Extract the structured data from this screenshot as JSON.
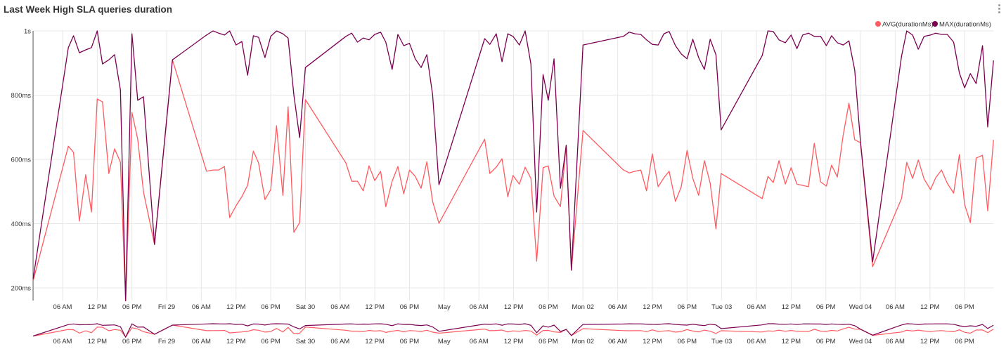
{
  "header": {
    "title": "Last Week High SLA queries duration",
    "menu_icon": "kebab-menu-icon"
  },
  "colors": {
    "avg": "#ff5a5f",
    "max": "#7b0051",
    "grid": "#e8e8e8",
    "axis": "#555555"
  },
  "chart_data": {
    "type": "line",
    "title": "Last Week High SLA queries duration",
    "xlabel": "",
    "ylabel": "",
    "x_unit": "hours since Thu 28 00:00",
    "xlim": [
      0.9,
      167.0
    ],
    "ylim": [
      160,
      1000
    ],
    "grid": true,
    "legend_position": "top-right",
    "y_ticks": [
      {
        "v": 200,
        "label": "200ms"
      },
      {
        "v": 400,
        "label": "400ms"
      },
      {
        "v": 600,
        "label": "600ms"
      },
      {
        "v": 800,
        "label": "800ms"
      },
      {
        "v": 1000,
        "label": "1s"
      }
    ],
    "x_ticks": [
      {
        "h": 6,
        "label": "06 AM"
      },
      {
        "h": 12,
        "label": "12 PM"
      },
      {
        "h": 18,
        "label": "06 PM"
      },
      {
        "h": 24,
        "label": "Fri 29"
      },
      {
        "h": 30,
        "label": "06 AM"
      },
      {
        "h": 36,
        "label": "12 PM"
      },
      {
        "h": 42,
        "label": "06 PM"
      },
      {
        "h": 48,
        "label": "Sat 30"
      },
      {
        "h": 54,
        "label": "06 AM"
      },
      {
        "h": 60,
        "label": "12 PM"
      },
      {
        "h": 66,
        "label": "06 PM"
      },
      {
        "h": 72,
        "label": "May"
      },
      {
        "h": 78,
        "label": "06 AM"
      },
      {
        "h": 84,
        "label": "12 PM"
      },
      {
        "h": 90,
        "label": "06 PM"
      },
      {
        "h": 96,
        "label": "Mon 02"
      },
      {
        "h": 102,
        "label": "06 AM"
      },
      {
        "h": 108,
        "label": "12 PM"
      },
      {
        "h": 114,
        "label": "06 PM"
      },
      {
        "h": 120,
        "label": "Tue 03"
      },
      {
        "h": 126,
        "label": "06 AM"
      },
      {
        "h": 132,
        "label": "12 PM"
      },
      {
        "h": 138,
        "label": "06 PM"
      },
      {
        "h": 144,
        "label": "Wed 04"
      },
      {
        "h": 150,
        "label": "06 AM"
      },
      {
        "h": 156,
        "label": "12 PM"
      },
      {
        "h": 162,
        "label": "06 PM"
      }
    ],
    "x": [
      0.9,
      7.0,
      7.9,
      8.9,
      10.0,
      11.0,
      12.0,
      12.9,
      14.0,
      15.0,
      16.0,
      16.9,
      18.0,
      19.0,
      20.0,
      21.9,
      25.0,
      30.9,
      32.0,
      33.0,
      34.0,
      34.9,
      36.0,
      37.0,
      38.0,
      39.0,
      39.9,
      41.0,
      42.0,
      43.0,
      44.1,
      45.0,
      46.0,
      47.0,
      48.0,
      55.0,
      56.0,
      57.0,
      58.0,
      59.0,
      60.0,
      61.0,
      61.9,
      63.0,
      64.0,
      65.0,
      66.0,
      67.0,
      68.0,
      69.0,
      70.0,
      71.1,
      79.0,
      79.9,
      81.0,
      82.0,
      83.0,
      83.9,
      85.0,
      86.0,
      87.0,
      88.0,
      89.1,
      90.0,
      91.0,
      92.1,
      93.1,
      94.0,
      96.0,
      103.0,
      104.0,
      105.0,
      106.0,
      107.0,
      108.0,
      109.0,
      110.0,
      110.9,
      112.0,
      113.0,
      114.0,
      115.0,
      116.0,
      117.0,
      118.0,
      119.0,
      119.9,
      127.0,
      128.0,
      128.9,
      129.9,
      131.0,
      132.0,
      133.0,
      134.0,
      135.0,
      136.0,
      137.1,
      138.1,
      139.0,
      140.0,
      141.0,
      142.0,
      143.0,
      144.0,
      146.1,
      151.1,
      152.0,
      153.0,
      154.0,
      155.0,
      156.1,
      157.0,
      158.0,
      159.0,
      160.1,
      161.1,
      162.0,
      163.0,
      164.0,
      165.1,
      166.0,
      167.0
    ],
    "series": [
      {
        "name": "AVG(durationMs)",
        "values": [
          222,
          641,
          622,
          408,
          552,
          436,
          788,
          779,
          556,
          633,
          591,
          160,
          746,
          663,
          499,
          335,
          910,
          563,
          567,
          567,
          578,
          419,
          456,
          484,
          519,
          626,
          589,
          475,
          506,
          705,
          488,
          764,
          373,
          403,
          786,
          589,
          532,
          532,
          502,
          580,
          534,
          563,
          453,
          532,
          578,
          493,
          567,
          547,
          510,
          593,
          469,
          401,
          663,
          556,
          576,
          602,
          484,
          550,
          523,
          576,
          541,
          283,
          574,
          580,
          486,
          453,
          644,
          255,
          690,
          567,
          558,
          563,
          567,
          502,
          617,
          515,
          543,
          563,
          469,
          515,
          628,
          541,
          488,
          596,
          526,
          384,
          556,
          478,
          547,
          528,
          596,
          523,
          574,
          523,
          519,
          515,
          650,
          530,
          517,
          582,
          545,
          676,
          775,
          661,
          652,
          266,
          478,
          591,
          541,
          598,
          539,
          506,
          543,
          567,
          526,
          495,
          615,
          460,
          403,
          604,
          613,
          440,
          661
        ]
      },
      {
        "name": "MAX(durationMs)",
        "values": [
          228,
          948,
          985,
          932,
          941,
          948,
          1000,
          897,
          910,
          926,
          816,
          160,
          991,
          784,
          795,
          335,
          910,
          987,
          1000,
          993,
          987,
          1000,
          956,
          967,
          862,
          985,
          980,
          917,
          983,
          1000,
          991,
          978,
          801,
          668,
          886,
          983,
          993,
          965,
          978,
          972,
          989,
          996,
          965,
          880,
          989,
          954,
          961,
          913,
          886,
          926,
          801,
          521,
          976,
          958,
          991,
          904,
          991,
          983,
          956,
          1000,
          897,
          436,
          864,
          784,
          913,
          510,
          644,
          255,
          956,
          983,
          996,
          991,
          989,
          972,
          958,
          956,
          991,
          998,
          954,
          928,
          913,
          974,
          917,
          880,
          974,
          926,
          692,
          923,
          1000,
          998,
          972,
          963,
          987,
          945,
          987,
          993,
          983,
          983,
          954,
          985,
          963,
          956,
          969,
          878,
          655,
          281,
          921,
          1000,
          987,
          943,
          983,
          987,
          993,
          989,
          989,
          965,
          869,
          823,
          867,
          836,
          954,
          701,
          908
        ]
      }
    ]
  }
}
